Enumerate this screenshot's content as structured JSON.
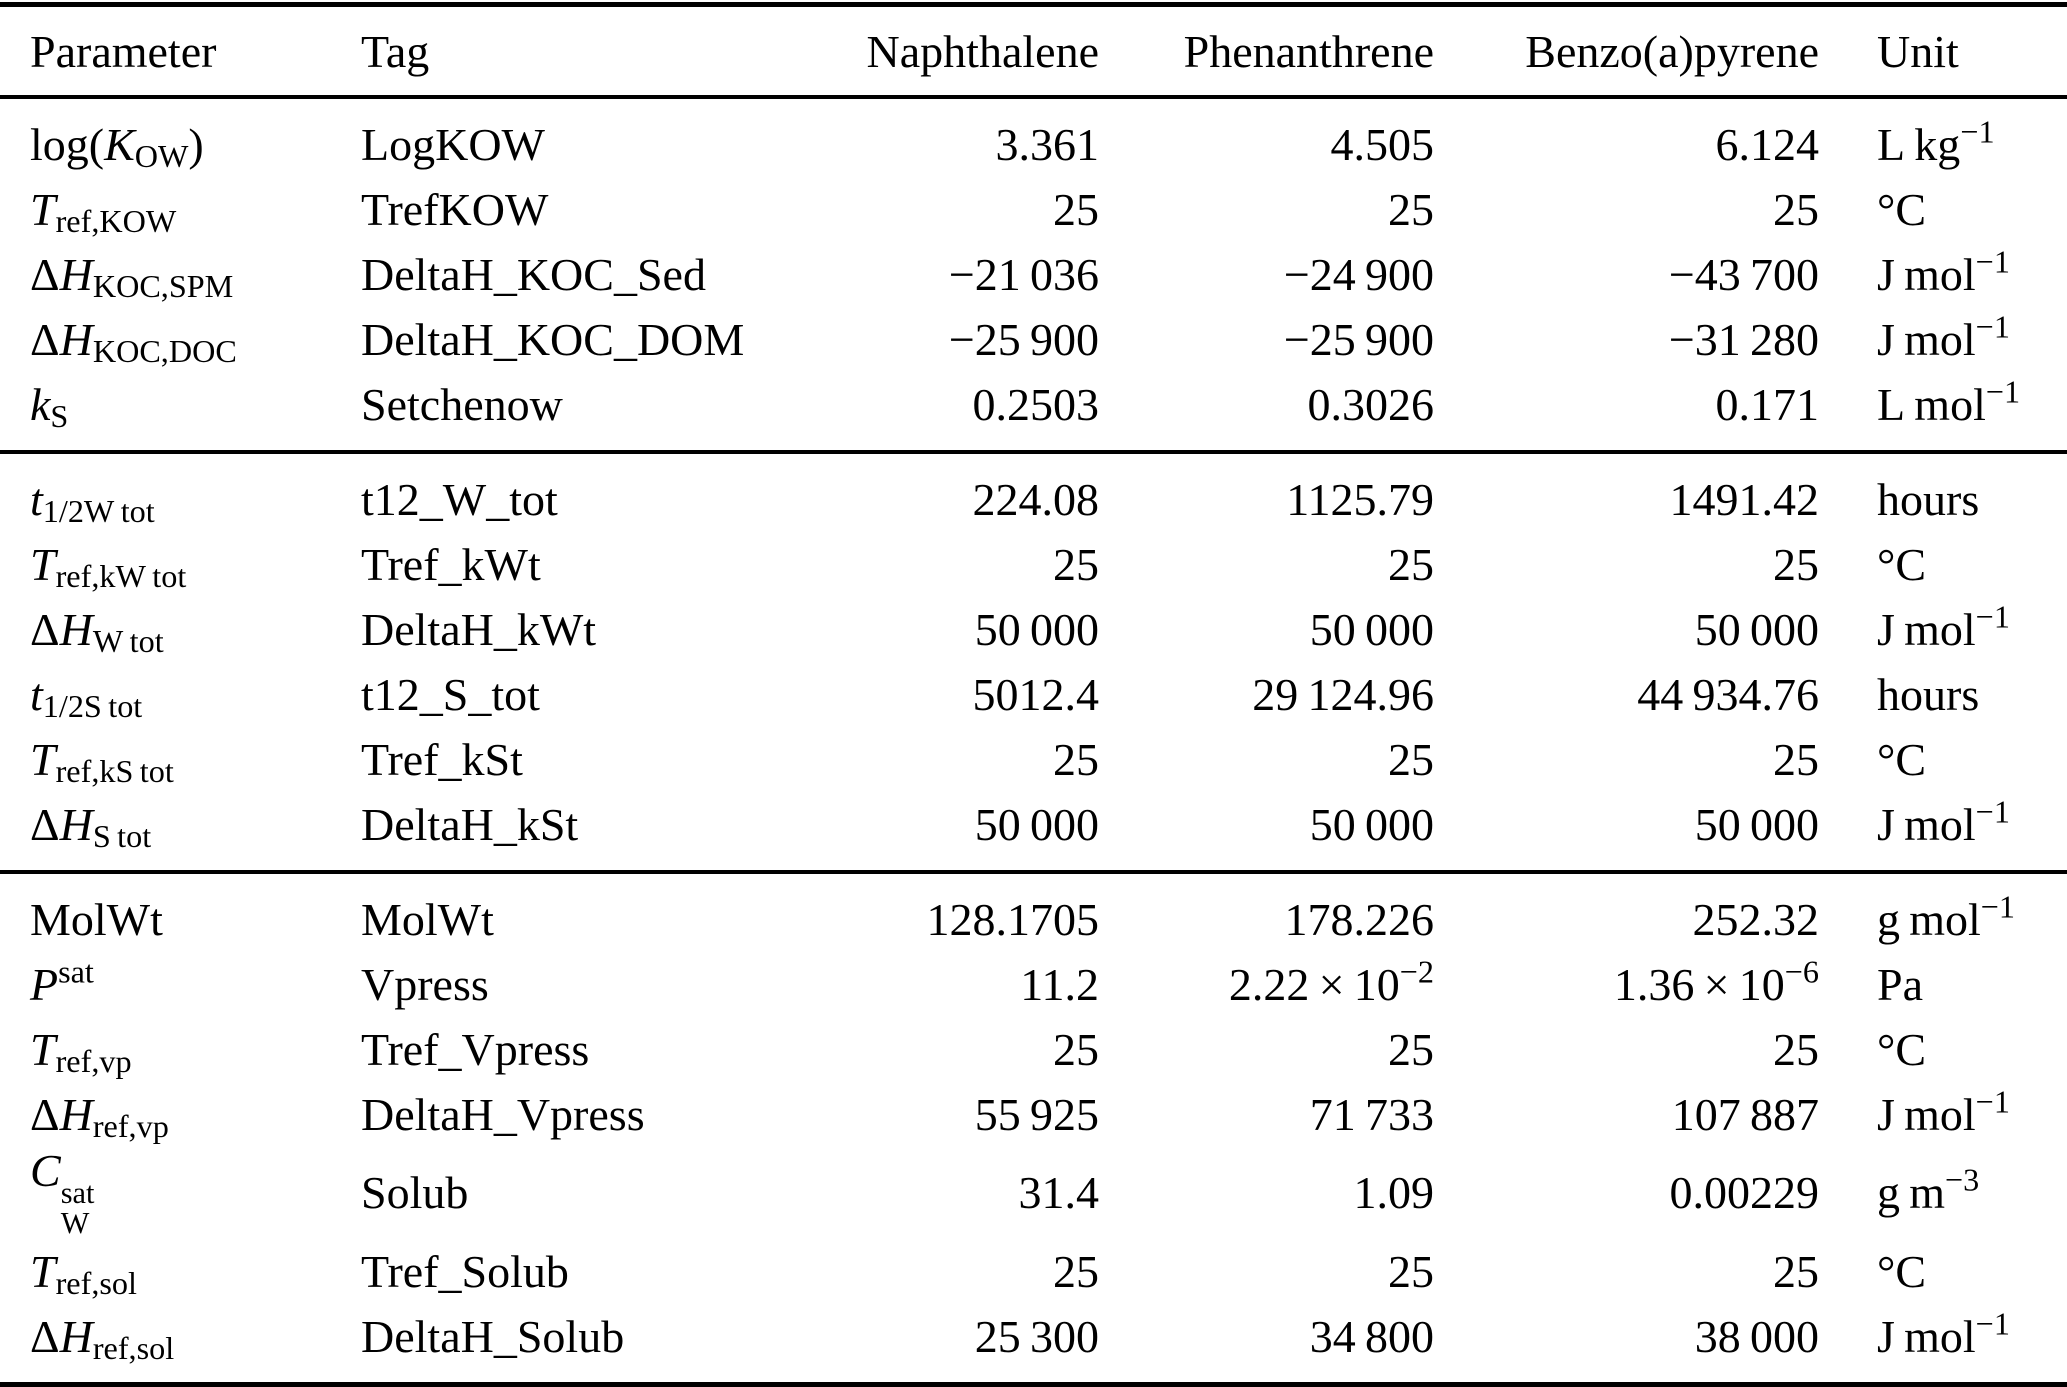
{
  "table": {
    "columns": [
      {
        "key": "parameter",
        "label": "Parameter"
      },
      {
        "key": "tag",
        "label": "Tag"
      },
      {
        "key": "naphthalene",
        "label": "Naphthalene"
      },
      {
        "key": "phenanthrene",
        "label": "Phenanthrene"
      },
      {
        "key": "benzo-a-pyrene",
        "label": "Benzo(a)pyrene"
      },
      {
        "key": "unit",
        "label": "Unit"
      }
    ],
    "sections": [
      {
        "rows": [
          {
            "param": "log(*K*~OW~)",
            "tag": "LogKOW",
            "values": [
              "3.361",
              "4.505",
              "6.124"
            ],
            "unit": "L kg^−1^"
          },
          {
            "param": "*T*~ref,KOW~",
            "tag": "TrefKOW",
            "values": [
              "25",
              "25",
              "25"
            ],
            "unit": "°C"
          },
          {
            "param": "Δ*H*~KOC,SPM~",
            "tag": "DeltaH_KOC_Sed",
            "values": [
              "−21 036",
              "−24 900",
              "−43 700"
            ],
            "unit": "J mol^−1^"
          },
          {
            "param": "Δ*H*~KOC,DOC~",
            "tag": "DeltaH_KOC_DOM",
            "values": [
              "−25 900",
              "−25 900",
              "−31 280"
            ],
            "unit": "J mol^−1^"
          },
          {
            "param": "*k*~S~",
            "tag": "Setchenow",
            "values": [
              "0.2503",
              "0.3026",
              "0.171"
            ],
            "unit": "L mol^−1^"
          }
        ]
      },
      {
        "rows": [
          {
            "param": "*t*~1/2W tot~",
            "tag": "t12_W_tot",
            "values": [
              "224.08",
              "1125.79",
              "1491.42"
            ],
            "unit": "hours"
          },
          {
            "param": "*T*~ref,kW tot~",
            "tag": "Tref_kWt",
            "values": [
              "25",
              "25",
              "25"
            ],
            "unit": "°C"
          },
          {
            "param": "Δ*H*~W tot~",
            "tag": "DeltaH_kWt",
            "values": [
              "50 000",
              "50 000",
              "50 000"
            ],
            "unit": "J mol^−1^"
          },
          {
            "param": "*t*~1/2S tot~",
            "tag": "t12_S_tot",
            "values": [
              "5012.4",
              "29 124.96",
              "44 934.76"
            ],
            "unit": "hours"
          },
          {
            "param": "*T*~ref,kS tot~",
            "tag": "Tref_kSt",
            "values": [
              "25",
              "25",
              "25"
            ],
            "unit": "°C"
          },
          {
            "param": "Δ*H*~S tot~",
            "tag": "DeltaH_kSt",
            "values": [
              "50 000",
              "50 000",
              "50 000"
            ],
            "unit": "J mol^−1^"
          }
        ]
      },
      {
        "rows": [
          {
            "param": "MolWt",
            "tag": "MolWt",
            "values": [
              "128.1705",
              "178.226",
              "252.32"
            ],
            "unit": "g mol^−1^"
          },
          {
            "param": "*P*^sat^",
            "tag": "Vpress",
            "values": [
              "11.2",
              "2.22 × 10^−2^",
              "1.36 × 10^−6^"
            ],
            "unit": "Pa"
          },
          {
            "param": "*T*~ref,vp~",
            "tag": "Tref_Vpress",
            "values": [
              "25",
              "25",
              "25"
            ],
            "unit": "°C"
          },
          {
            "param": "Δ*H*~ref,vp~",
            "tag": "DeltaH_Vpress",
            "values": [
              "55 925",
              "71 733",
              "107 887"
            ],
            "unit": "J mol^−1^"
          },
          {
            "param": "*C*%W|sat%",
            "tag": "Solub",
            "values": [
              "31.4",
              "1.09",
              "0.00229"
            ],
            "unit": "g m^−3^"
          },
          {
            "param": "*T*~ref,sol~",
            "tag": "Tref_Solub",
            "values": [
              "25",
              "25",
              "25"
            ],
            "unit": "°C"
          },
          {
            "param": "Δ*H*~ref,sol~",
            "tag": "DeltaH_Solub",
            "values": [
              "25 300",
              "34 800",
              "38 000"
            ],
            "unit": "J mol^−1^"
          }
        ]
      }
    ]
  }
}
